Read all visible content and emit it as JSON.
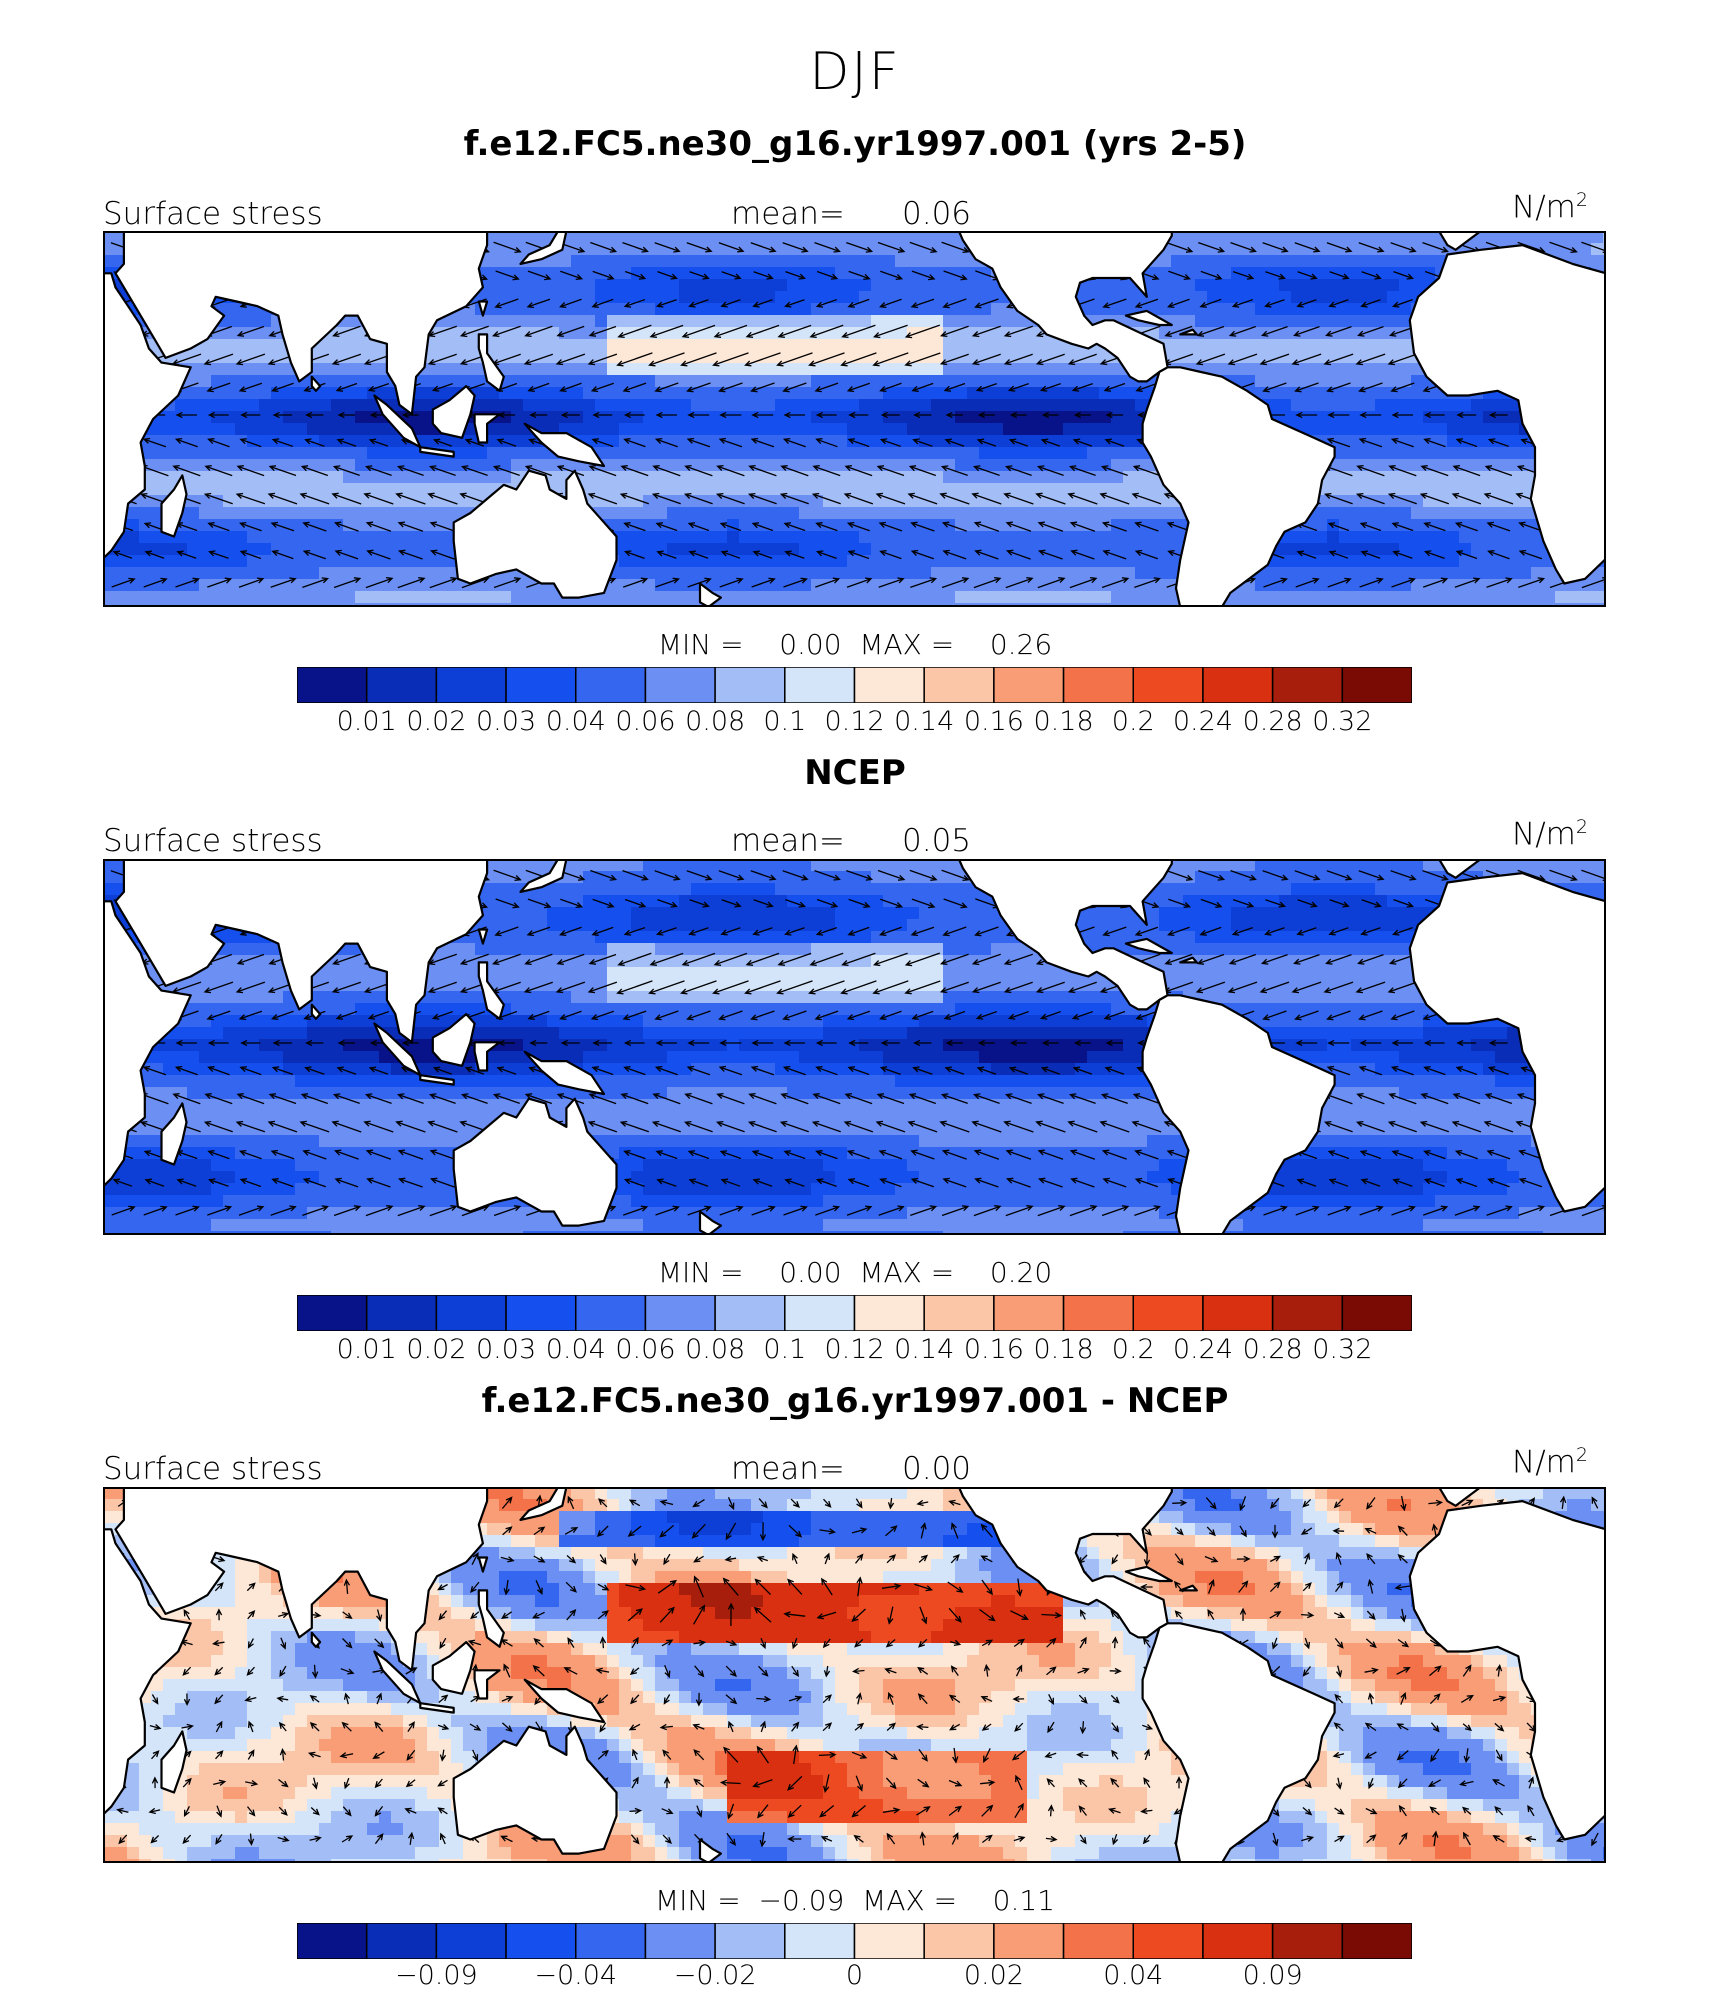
{
  "season": "DJF",
  "panels": [
    {
      "title": "f.e12.FC5.ne30_g16.yr1997.001 (yrs 2-5)",
      "variable": "Surface stress",
      "mean_label": "mean=",
      "mean_value": "0.06",
      "units": "N/m",
      "units_sup": "2",
      "min_label": "MIN =",
      "min_value": "0.00",
      "max_label": "MAX =",
      "max_value": "0.26",
      "colorbar_ticks": [
        "0.01",
        "0.02",
        "0.03",
        "0.04",
        "0.06",
        "0.08",
        "0.1",
        "0.12",
        "0.14",
        "0.16",
        "0.18",
        "0.2",
        "0.24",
        "0.28",
        "0.32"
      ],
      "field": "abs"
    },
    {
      "title": "NCEP",
      "variable": "Surface stress",
      "mean_label": "mean=",
      "mean_value": "0.05",
      "units": "N/m",
      "units_sup": "2",
      "min_label": "MIN =",
      "min_value": "0.00",
      "max_label": "MAX =",
      "max_value": "0.20",
      "colorbar_ticks": [
        "0.01",
        "0.02",
        "0.03",
        "0.04",
        "0.06",
        "0.08",
        "0.1",
        "0.12",
        "0.14",
        "0.16",
        "0.18",
        "0.2",
        "0.24",
        "0.28",
        "0.32"
      ],
      "field": "abs"
    },
    {
      "title": "f.e12.FC5.ne30_g16.yr1997.001 - NCEP",
      "variable": "Surface stress",
      "mean_label": "mean=",
      "mean_value": "0.00",
      "units": "N/m",
      "units_sup": "2",
      "min_label": "MIN =",
      "min_value": "−0.09",
      "max_label": "MAX =",
      "max_value": "0.11",
      "colorbar_ticks": [
        "−0.09",
        "−0.04",
        "−0.02",
        "0",
        "0.02",
        "0.04",
        "0.09"
      ],
      "field": "diff"
    }
  ],
  "colormap": [
    "#08138a",
    "#0a2db8",
    "#0d3fd6",
    "#1550ee",
    "#3566f0",
    "#6b8ff3",
    "#a3bdf6",
    "#d4e5fa",
    "#fde7d7",
    "#fbc5a8",
    "#f89d76",
    "#f4724a",
    "#ee4a22",
    "#d83010",
    "#a81e0c",
    "#7a0a04"
  ],
  "land_color": "#ffffff",
  "coastline_color": "#000000"
}
